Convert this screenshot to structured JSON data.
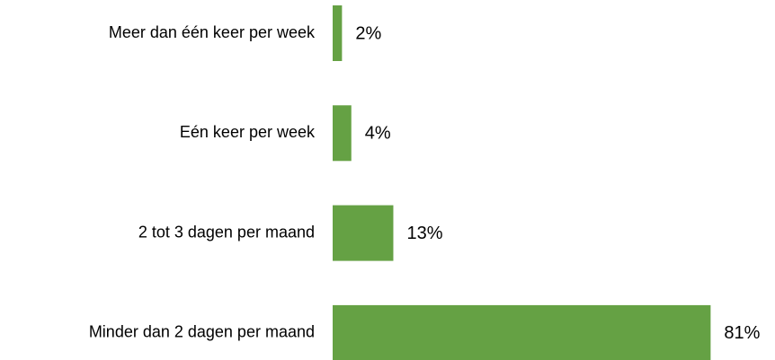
{
  "chart_data": {
    "type": "barh",
    "categories": [
      "Meer dan één keer per week",
      "Eén keer per week",
      "2 tot 3 dagen per maand",
      "Minder dan 2 dagen per maand"
    ],
    "values": [
      2,
      4,
      13,
      81
    ],
    "value_labels": [
      "2%",
      "4%",
      "13%",
      "81%"
    ],
    "color": "#65a144"
  }
}
